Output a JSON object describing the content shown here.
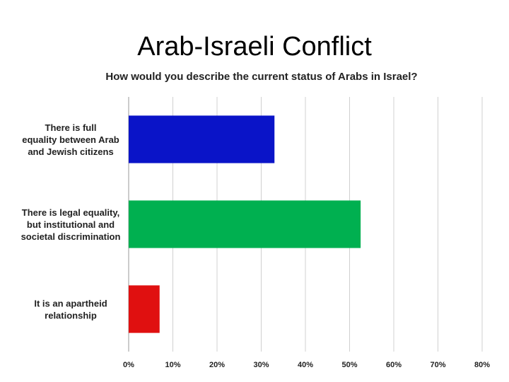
{
  "slide": {
    "title": "Arab-Israeli Conflict"
  },
  "colors": {
    "gridline": "#d0d0d0",
    "axis": "#9a9a9a"
  },
  "chart_data": {
    "type": "bar",
    "orientation": "horizontal",
    "title": "How would you describe the current status of Arabs in Israel?",
    "xlabel": "",
    "ylabel": "",
    "xlim": [
      0,
      80
    ],
    "unit": "%",
    "grid": true,
    "legend": "none",
    "categories": [
      [
        "There is full",
        "equality between Arab",
        "and Jewish citizens"
      ],
      [
        "There is legal equality,",
        "but institutional and",
        "societal discrimination"
      ],
      [
        "It is an apartheid",
        "relationship"
      ]
    ],
    "values": [
      33,
      52.5,
      7
    ],
    "bar_colors": [
      "#0a14c8",
      "#00b050",
      "#e01010"
    ],
    "ticks": [
      0,
      10,
      20,
      30,
      40,
      50,
      60,
      70,
      80
    ],
    "tick_labels": [
      "0%",
      "10%",
      "20%",
      "30%",
      "40%",
      "50%",
      "60%",
      "70%",
      "80%"
    ]
  }
}
